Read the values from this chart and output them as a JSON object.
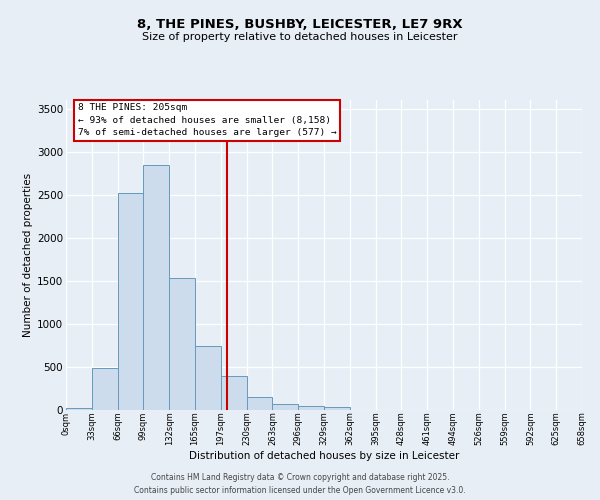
{
  "title_line1": "8, THE PINES, BUSHBY, LEICESTER, LE7 9RX",
  "title_line2": "Size of property relative to detached houses in Leicester",
  "xlabel": "Distribution of detached houses by size in Leicester",
  "ylabel": "Number of detached properties",
  "bin_labels": [
    "0sqm",
    "33sqm",
    "66sqm",
    "99sqm",
    "132sqm",
    "165sqm",
    "197sqm",
    "230sqm",
    "263sqm",
    "296sqm",
    "329sqm",
    "362sqm",
    "395sqm",
    "428sqm",
    "461sqm",
    "494sqm",
    "526sqm",
    "559sqm",
    "592sqm",
    "625sqm",
    "658sqm"
  ],
  "bar_values": [
    20,
    490,
    2520,
    2840,
    1530,
    740,
    390,
    155,
    75,
    50,
    40,
    0,
    0,
    0,
    0,
    0,
    0,
    0,
    0,
    0
  ],
  "bar_color": "#ccdcec",
  "bar_edge_color": "#6699bb",
  "vline_color": "#cc0000",
  "vline_x": 6.24,
  "annotation_text_l1": "8 THE PINES: 205sqm",
  "annotation_text_l2": "← 93% of detached houses are smaller (8,158)",
  "annotation_text_l3": "7% of semi-detached houses are larger (577) →",
  "ylim": [
    0,
    3600
  ],
  "yticks": [
    0,
    500,
    1000,
    1500,
    2000,
    2500,
    3000,
    3500
  ],
  "background_color": "#e8eef6",
  "grid_color": "#ffffff",
  "footer_line1": "Contains HM Land Registry data © Crown copyright and database right 2025.",
  "footer_line2": "Contains public sector information licensed under the Open Government Licence v3.0."
}
